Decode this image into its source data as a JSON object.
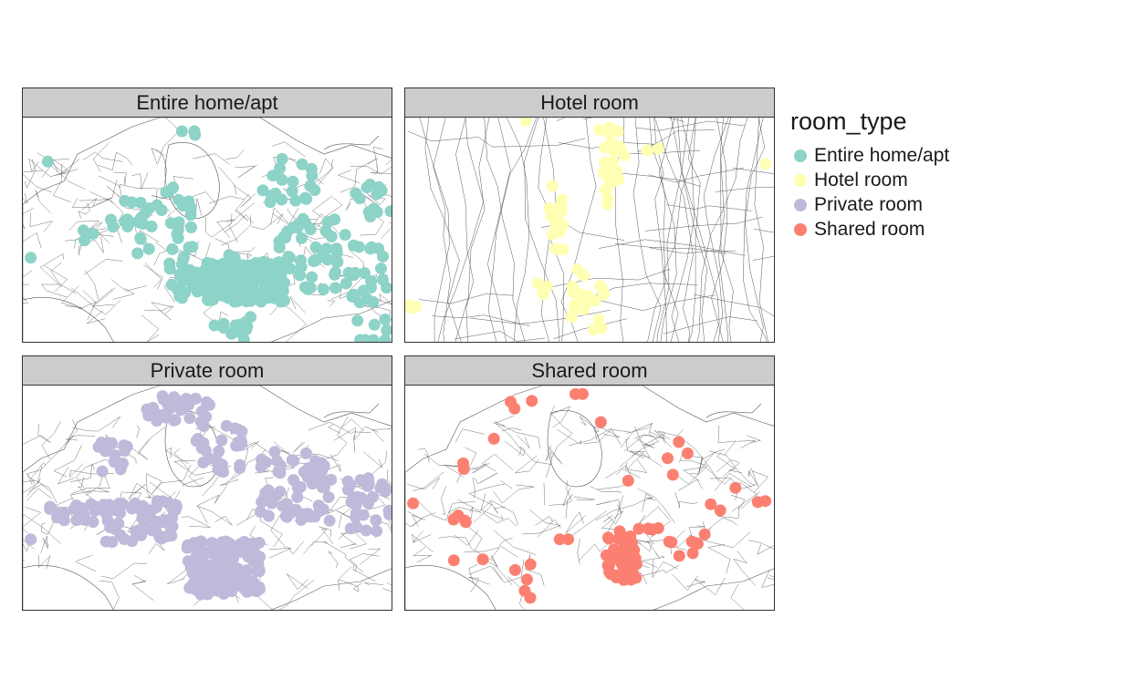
{
  "legend": {
    "title": "room_type",
    "items": [
      {
        "label": "Entire home/apt",
        "color": "#8DD3C7"
      },
      {
        "label": "Hotel room",
        "color": "#FFFFB3"
      },
      {
        "label": "Private room",
        "color": "#BEBADA"
      },
      {
        "label": "Shared room",
        "color": "#FB8072"
      }
    ]
  },
  "panels": [
    {
      "title": "Entire home/apt",
      "color": "#8DD3C7"
    },
    {
      "title": "Hotel room",
      "color": "#FFFFB3"
    },
    {
      "title": "Private room",
      "color": "#BEBADA"
    },
    {
      "title": "Shared room",
      "color": "#FB8072"
    }
  ],
  "basemap": {
    "line_color": "#595959",
    "fill": "#ffffff"
  }
}
